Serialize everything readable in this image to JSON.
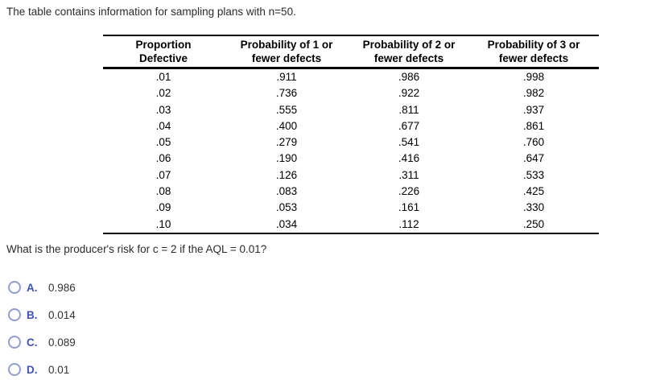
{
  "page": {
    "intro": "The table contains information for sampling plans with n=50.",
    "question": "What is the producer's risk for c = 2 if the AQL = 0.01?"
  },
  "table": {
    "headers": [
      {
        "lines": [
          "Proportion",
          "Defective"
        ]
      },
      {
        "lines": [
          "Probability of 1 or",
          "fewer defects"
        ]
      },
      {
        "lines": [
          "Probability of 2 or",
          "fewer defects"
        ]
      },
      {
        "lines": [
          "Probability of 3 or",
          "fewer defects"
        ]
      }
    ],
    "rows": [
      [
        ".01",
        ".911",
        ".986",
        ".998"
      ],
      [
        ".02",
        ".736",
        ".922",
        ".982"
      ],
      [
        ".03",
        ".555",
        ".811",
        ".937"
      ],
      [
        ".04",
        ".400",
        ".677",
        ".861"
      ],
      [
        ".05",
        ".279",
        ".541",
        ".760"
      ],
      [
        ".06",
        ".190",
        ".416",
        ".647"
      ],
      [
        ".07",
        ".126",
        ".311",
        ".533"
      ],
      [
        ".08",
        ".083",
        ".226",
        ".425"
      ],
      [
        ".09",
        ".053",
        ".161",
        ".330"
      ],
      [
        ".10",
        ".034",
        ".112",
        ".250"
      ]
    ]
  },
  "options": [
    {
      "letter": "A.",
      "value": "0.986",
      "selected": false
    },
    {
      "letter": "B.",
      "value": "0.014",
      "selected": false
    },
    {
      "letter": "C.",
      "value": "0.089",
      "selected": false
    },
    {
      "letter": "D.",
      "value": "0.01",
      "selected": false
    }
  ],
  "colors": {
    "text": "#2b2b2b",
    "table_text": "#000000",
    "option_letter": "#3b51c5",
    "radio_border": "#8f9de0",
    "rule": "#000000"
  }
}
